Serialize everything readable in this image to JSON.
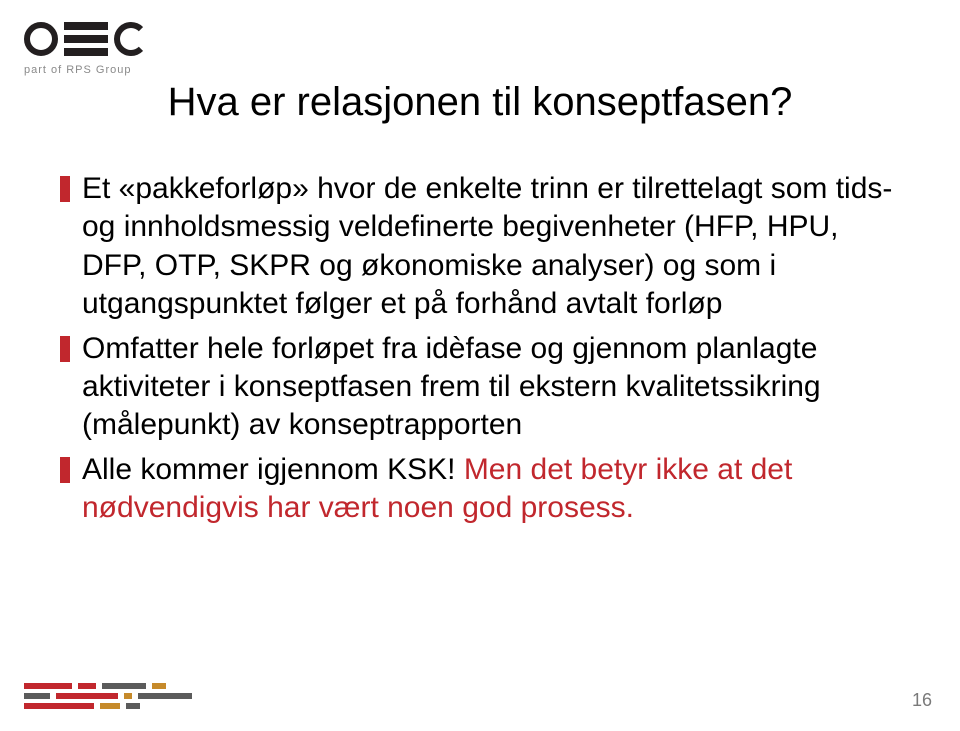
{
  "logo": {
    "subtext": "part of RPS Group",
    "bar_color": "#231f20",
    "sub_color": "#8a8a8a"
  },
  "title": {
    "text": "Hva er relasjonen til konseptfasen?",
    "color": "#000000",
    "fontsize": 40
  },
  "bullets": {
    "mark_color": "#c1272d",
    "text_color": "#000000",
    "fontsize": 30,
    "items": [
      {
        "text": "Et «pakkeforløp» hvor de enkelte trinn er tilrettelagt som tids- og innholdsmessig veldefinerte begivenheter (HFP, HPU, DFP, OTP, SKPR og økonomiske analyser) og som i utgangspunktet følger et på forhånd avtalt forløp",
        "red_suffix": ""
      },
      {
        "text": "Omfatter hele forløpet fra idèfase og gjennom planlagte aktiviteter i konseptfasen frem til ekstern kvalitetssikring (målepunkt) av konseptrapporten",
        "red_suffix": ""
      },
      {
        "text": "Alle kommer igjennom KSK! ",
        "red_suffix": "Men det betyr ikke at det nødvendigvis har vært noen god prosess."
      }
    ]
  },
  "footer_stripes": {
    "rows": [
      [
        {
          "w": 48,
          "c": "#c1272d"
        },
        {
          "w": 18,
          "c": "#c1272d"
        },
        {
          "w": 44,
          "c": "#5b5b5b"
        },
        {
          "w": 14,
          "c": "#c68a2a"
        }
      ],
      [
        {
          "w": 26,
          "c": "#5b5b5b"
        },
        {
          "w": 62,
          "c": "#c1272d"
        },
        {
          "w": 8,
          "c": "#c68a2a"
        },
        {
          "w": 54,
          "c": "#5b5b5b"
        }
      ],
      [
        {
          "w": 70,
          "c": "#c1272d"
        },
        {
          "w": 20,
          "c": "#c68a2a"
        },
        {
          "w": 14,
          "c": "#5b5b5b"
        }
      ]
    ]
  },
  "page_number": "16",
  "colors": {
    "background": "#ffffff",
    "accent_red": "#c1272d",
    "page_num": "#7a7a7a"
  }
}
